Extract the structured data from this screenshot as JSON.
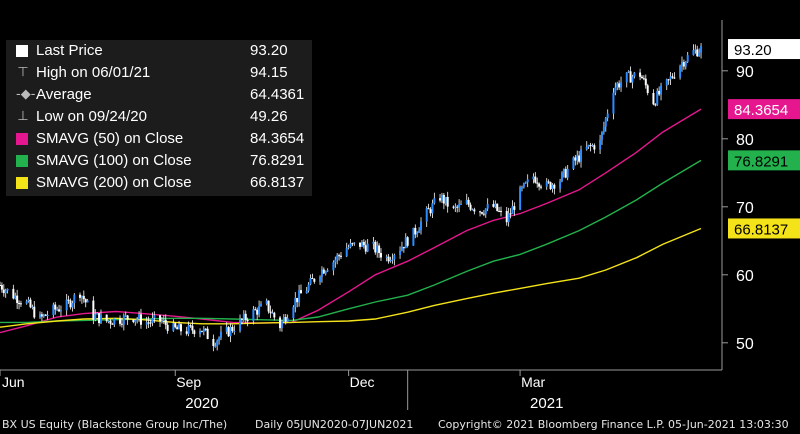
{
  "chart_data": {
    "type": "line",
    "legend": {
      "placement": "top-left",
      "items": [
        {
          "label": "Last Price",
          "value": "93.20",
          "color": "#ffffff",
          "marker": "square"
        },
        {
          "label": "High on 06/01/21",
          "value": "94.15",
          "color": "#bbbbbb",
          "marker": "high-tick"
        },
        {
          "label": "Average",
          "value": "64.4361",
          "color": "#bbbbbb",
          "marker": "average-line"
        },
        {
          "label": "Low on 09/24/20",
          "value": "49.26",
          "color": "#bbbbbb",
          "marker": "low-tick"
        },
        {
          "label": "SMAVG (50)  on Close",
          "value": "84.3654",
          "color": "#e6178e",
          "marker": "square"
        },
        {
          "label": "SMAVG (100)  on Close",
          "value": "76.8291",
          "color": "#22b14c",
          "marker": "square"
        },
        {
          "label": "SMAVG (200)  on Close",
          "value": "66.8137",
          "color": "#f5e31a",
          "marker": "square"
        }
      ]
    },
    "y_axis": {
      "ticks": [
        50,
        60,
        70,
        80,
        90
      ],
      "labels": [
        "50",
        "60",
        "70",
        "80",
        "90"
      ],
      "range": [
        46,
        96
      ]
    },
    "x_axis": {
      "month_labels": [
        {
          "label": "Jun",
          "date": "2020-06-01"
        },
        {
          "label": "Sep",
          "date": "2020-09-01"
        },
        {
          "label": "Dec",
          "date": "2020-12-01"
        },
        {
          "label": "Mar",
          "date": "2021-03-01"
        }
      ],
      "year_labels": [
        {
          "label": "2020",
          "date": "2020-09-15"
        },
        {
          "label": "2021",
          "date": "2021-03-15"
        }
      ],
      "year_divider": "2021-01-01",
      "range": [
        "2020-06-01",
        "2021-06-15"
      ]
    },
    "value_tags": [
      {
        "text": "93.20",
        "value": 93.2,
        "bg": "#ffffff",
        "fg": "#000000"
      },
      {
        "text": "84.3654",
        "value": 84.3654,
        "bg": "#e6178e",
        "fg": "#ffffff"
      },
      {
        "text": "76.8291",
        "value": 76.8291,
        "bg": "#22b14c",
        "fg": "#000000"
      },
      {
        "text": "66.8137",
        "value": 66.8137,
        "bg": "#f5e31a",
        "fg": "#000000"
      }
    ],
    "price_series": {
      "name": "Last Price",
      "color": "#ffffff",
      "up_color": "#2b8cff",
      "points": [
        [
          "2020-06-01",
          58.5
        ],
        [
          "2020-06-08",
          57.0
        ],
        [
          "2020-06-15",
          55.8
        ],
        [
          "2020-06-22",
          53.5
        ],
        [
          "2020-06-29",
          54.8
        ],
        [
          "2020-07-06",
          55.5
        ],
        [
          "2020-07-13",
          57.5
        ],
        [
          "2020-07-20",
          54.0
        ],
        [
          "2020-07-27",
          53.2
        ],
        [
          "2020-08-03",
          53.5
        ],
        [
          "2020-08-10",
          53.8
        ],
        [
          "2020-08-17",
          53.0
        ],
        [
          "2020-08-24",
          53.3
        ],
        [
          "2020-08-31",
          52.0
        ],
        [
          "2020-09-07",
          51.8
        ],
        [
          "2020-09-14",
          52.2
        ],
        [
          "2020-09-21",
          50.2
        ],
        [
          "2020-09-28",
          51.5
        ],
        [
          "2020-10-05",
          53.0
        ],
        [
          "2020-10-12",
          54.5
        ],
        [
          "2020-10-19",
          55.5
        ],
        [
          "2020-10-26",
          52.5
        ],
        [
          "2020-11-02",
          56.0
        ],
        [
          "2020-11-09",
          58.0
        ],
        [
          "2020-11-16",
          60.5
        ],
        [
          "2020-11-23",
          62.0
        ],
        [
          "2020-11-30",
          64.0
        ],
        [
          "2020-12-07",
          64.5
        ],
        [
          "2020-12-14",
          64.0
        ],
        [
          "2020-12-21",
          62.5
        ],
        [
          "2020-12-28",
          64.0
        ],
        [
          "2021-01-04",
          66.0
        ],
        [
          "2021-01-11",
          69.0
        ],
        [
          "2021-01-18",
          71.5
        ],
        [
          "2021-01-25",
          69.5
        ],
        [
          "2021-02-01",
          70.5
        ],
        [
          "2021-02-08",
          69.5
        ],
        [
          "2021-02-15",
          70.0
        ],
        [
          "2021-02-22",
          68.0
        ],
        [
          "2021-03-01",
          72.0
        ],
        [
          "2021-03-08",
          74.5
        ],
        [
          "2021-03-15",
          73.0
        ],
        [
          "2021-03-22",
          74.0
        ],
        [
          "2021-03-29",
          76.5
        ],
        [
          "2021-04-05",
          78.5
        ],
        [
          "2021-04-12",
          79.5
        ],
        [
          "2021-04-19",
          87.5
        ],
        [
          "2021-04-26",
          89.0
        ],
        [
          "2021-05-03",
          89.5
        ],
        [
          "2021-05-10",
          85.5
        ],
        [
          "2021-05-17",
          88.0
        ],
        [
          "2021-05-24",
          91.0
        ],
        [
          "2021-05-31",
          92.8
        ],
        [
          "2021-06-04",
          93.2
        ]
      ]
    },
    "series": [
      {
        "name": "SMAVG (50)  on Close",
        "color": "#e6178e",
        "points": [
          [
            "2020-06-01",
            51.5
          ],
          [
            "2020-06-15",
            52.5
          ],
          [
            "2020-07-01",
            53.8
          ],
          [
            "2020-07-15",
            54.3
          ],
          [
            "2020-08-01",
            54.6
          ],
          [
            "2020-08-15",
            54.3
          ],
          [
            "2020-09-01",
            53.9
          ],
          [
            "2020-09-15",
            53.5
          ],
          [
            "2020-10-01",
            53.0
          ],
          [
            "2020-10-15",
            52.9
          ],
          [
            "2020-11-01",
            53.0
          ],
          [
            "2020-11-15",
            54.8
          ],
          [
            "2020-12-01",
            57.5
          ],
          [
            "2020-12-15",
            60.0
          ],
          [
            "2021-01-01",
            62.0
          ],
          [
            "2021-01-15",
            64.0
          ],
          [
            "2021-02-01",
            66.5
          ],
          [
            "2021-02-15",
            68.0
          ],
          [
            "2021-03-01",
            69.0
          ],
          [
            "2021-03-15",
            70.5
          ],
          [
            "2021-04-01",
            72.5
          ],
          [
            "2021-04-15",
            75.0
          ],
          [
            "2021-05-01",
            78.0
          ],
          [
            "2021-05-15",
            81.0
          ],
          [
            "2021-06-04",
            84.3654
          ]
        ]
      },
      {
        "name": "SMAVG (100)  on Close",
        "color": "#22b14c",
        "points": [
          [
            "2020-06-01",
            53.0
          ],
          [
            "2020-06-15",
            53.0
          ],
          [
            "2020-07-01",
            53.2
          ],
          [
            "2020-07-15",
            53.3
          ],
          [
            "2020-08-01",
            53.4
          ],
          [
            "2020-08-15",
            53.5
          ],
          [
            "2020-09-01",
            53.6
          ],
          [
            "2020-09-15",
            53.6
          ],
          [
            "2020-10-01",
            53.5
          ],
          [
            "2020-10-15",
            53.4
          ],
          [
            "2020-11-01",
            53.3
          ],
          [
            "2020-11-15",
            53.8
          ],
          [
            "2020-12-01",
            55.0
          ],
          [
            "2020-12-15",
            56.0
          ],
          [
            "2021-01-01",
            57.0
          ],
          [
            "2021-01-15",
            58.5
          ],
          [
            "2021-02-01",
            60.5
          ],
          [
            "2021-02-15",
            62.0
          ],
          [
            "2021-03-01",
            63.0
          ],
          [
            "2021-03-15",
            64.5
          ],
          [
            "2021-04-01",
            66.5
          ],
          [
            "2021-04-15",
            68.5
          ],
          [
            "2021-05-01",
            71.0
          ],
          [
            "2021-05-15",
            73.5
          ],
          [
            "2021-06-04",
            76.8291
          ]
        ]
      },
      {
        "name": "SMAVG (200)  on Close",
        "color": "#f5e31a",
        "points": [
          [
            "2020-06-01",
            52.3
          ],
          [
            "2020-06-15",
            52.8
          ],
          [
            "2020-07-01",
            53.2
          ],
          [
            "2020-07-15",
            53.5
          ],
          [
            "2020-08-01",
            53.6
          ],
          [
            "2020-08-15",
            53.4
          ],
          [
            "2020-09-01",
            53.0
          ],
          [
            "2020-09-15",
            52.8
          ],
          [
            "2020-10-01",
            52.8
          ],
          [
            "2020-10-15",
            52.9
          ],
          [
            "2020-11-01",
            53.0
          ],
          [
            "2020-11-15",
            53.1
          ],
          [
            "2020-12-01",
            53.2
          ],
          [
            "2020-12-15",
            53.5
          ],
          [
            "2021-01-01",
            54.5
          ],
          [
            "2021-01-15",
            55.5
          ],
          [
            "2021-02-01",
            56.5
          ],
          [
            "2021-02-15",
            57.3
          ],
          [
            "2021-03-01",
            58.0
          ],
          [
            "2021-03-15",
            58.7
          ],
          [
            "2021-04-01",
            59.5
          ],
          [
            "2021-04-15",
            60.7
          ],
          [
            "2021-05-01",
            62.5
          ],
          [
            "2021-05-15",
            64.5
          ],
          [
            "2021-06-04",
            66.8137
          ]
        ]
      }
    ],
    "grid": false
  },
  "footer": {
    "security": "BX US Equity (Blackstone Group Inc/The)",
    "period": "Daily 05JUN2020-07JUN2021",
    "copyright": "Copyright© 2021 Bloomberg Finance L.P.",
    "timestamp": "05-Jun-2021 13:03:30"
  }
}
